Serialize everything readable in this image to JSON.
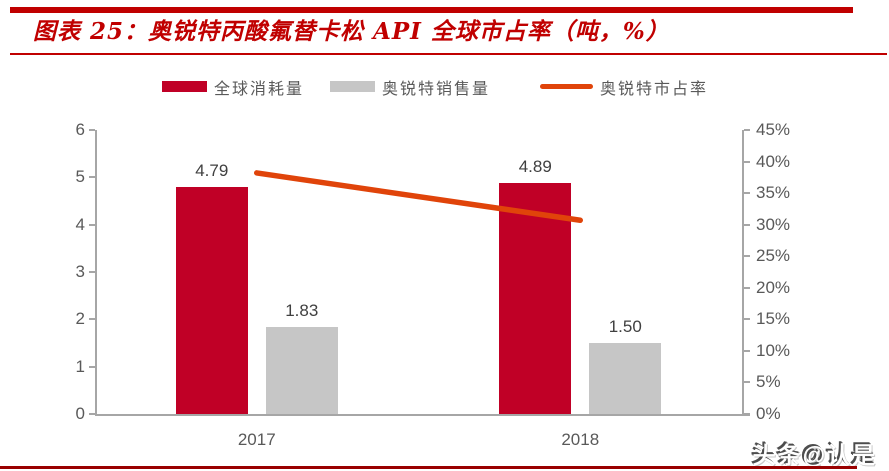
{
  "header": {
    "title": "图表 25：奥锐特丙酸氟替卡松 API 全球市占率（吨，%）"
  },
  "colors": {
    "title_red": "#C00000",
    "bar_red": "#C00026",
    "bar_gray": "#C6C6C6",
    "line_orange": "#E0440A",
    "axis_text": "#595959",
    "axis_line": "#A6A6A6",
    "data_label_text": "#404040",
    "bottom_rule": "#990000"
  },
  "chart_data": {
    "type": "bar",
    "subtype": "bar+line combo, dual axis",
    "categories": [
      "2017",
      "2018"
    ],
    "series": [
      {
        "name": "全球消耗量",
        "type": "bar",
        "axis": "left",
        "color": "#C00026",
        "values": [
          4.79,
          4.89
        ],
        "value_labels": [
          "4.79",
          "4.89"
        ]
      },
      {
        "name": "奥锐特销售量",
        "type": "bar",
        "axis": "left",
        "color": "#C6C6C6",
        "values": [
          1.83,
          1.5
        ],
        "value_labels": [
          "1.83",
          "1.50"
        ]
      },
      {
        "name": "奥锐特市占率",
        "type": "line",
        "axis": "right",
        "color": "#E0440A",
        "values": [
          38.2,
          30.7
        ]
      }
    ],
    "left_axis": {
      "min": 0,
      "max": 6,
      "tick_values": [
        0,
        1,
        2,
        3,
        4,
        5,
        6
      ],
      "tick_labels": [
        "0",
        "1",
        "2",
        "3",
        "4",
        "5",
        "6"
      ]
    },
    "right_axis": {
      "min": 0,
      "max": 45,
      "tick_values": [
        0,
        5,
        10,
        15,
        20,
        25,
        30,
        35,
        40,
        45
      ],
      "tick_labels": [
        "0%",
        "5%",
        "10%",
        "15%",
        "20%",
        "25%",
        "30%",
        "35%",
        "40%",
        "45%"
      ]
    },
    "grid": "off",
    "legend_position": "top"
  },
  "watermark": {
    "text": "头条@认是"
  }
}
